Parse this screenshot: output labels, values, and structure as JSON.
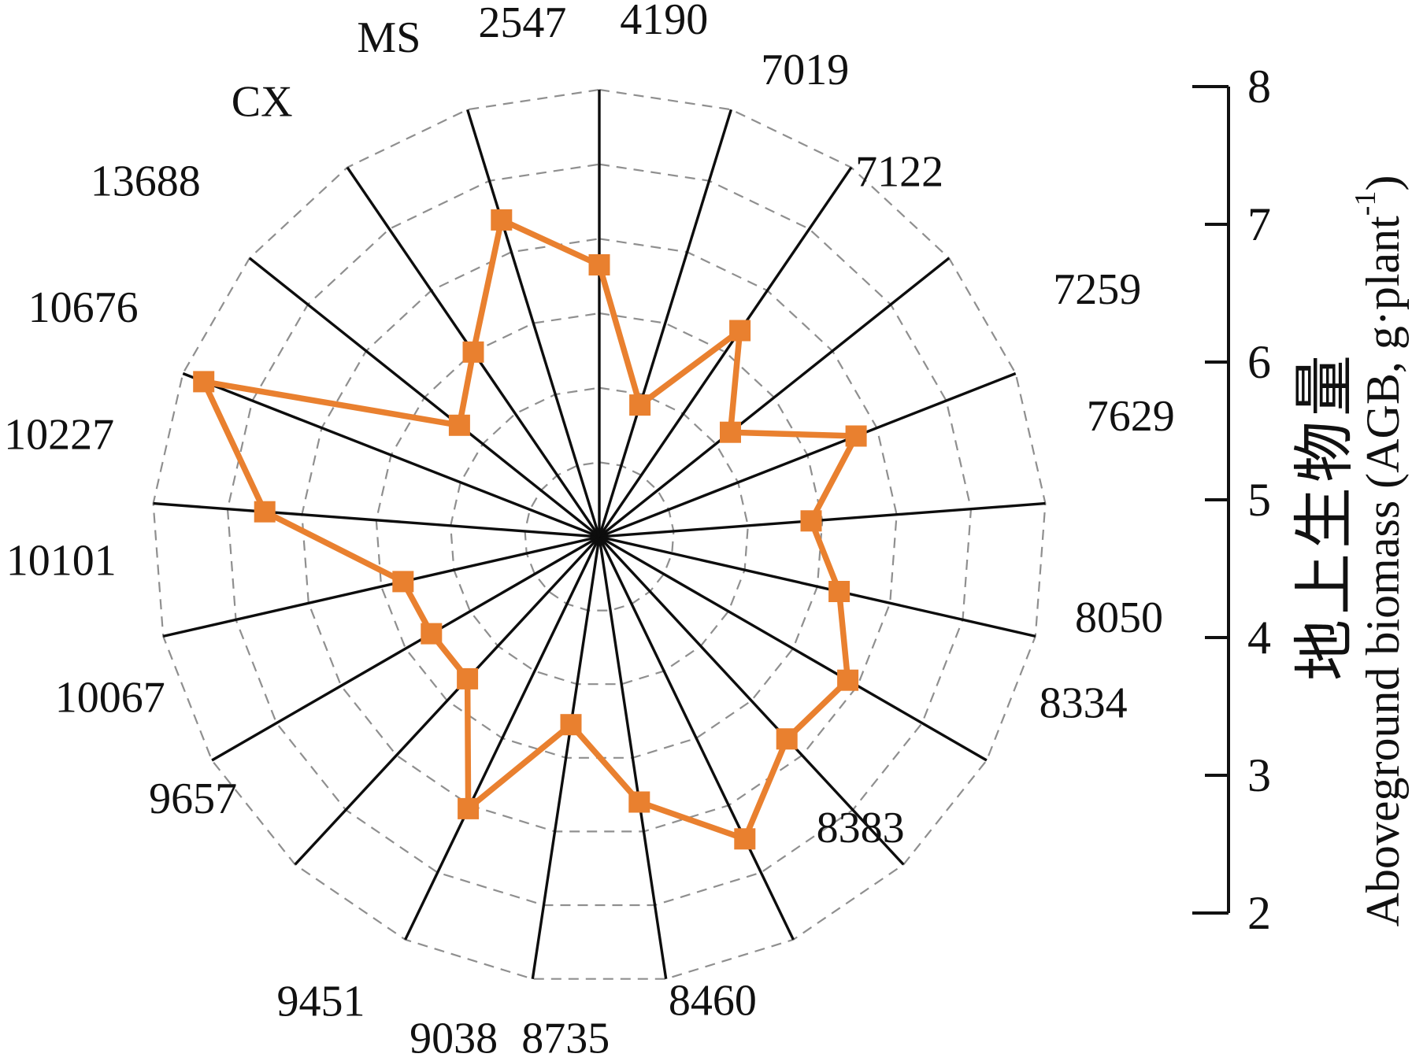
{
  "chart_data": {
    "type": "radar",
    "title": "",
    "categories": [
      "2547",
      "4190",
      "7019",
      "7122",
      "7259",
      "7629",
      "8050",
      "8334",
      "8383",
      "8460",
      "8735",
      "9038",
      "9451",
      "9657",
      "10067",
      "10101",
      "10227",
      "10676",
      "13688",
      "CX",
      "MS"
    ],
    "series": [
      {
        "name": "Aboveground biomass (AGB)",
        "values": [
          5.65,
          3.85,
          5.35,
          4.25,
          5.7,
          4.85,
          5.3,
          5.85,
          5.7,
          6.5,
          5.6,
          4.55,
          6.05,
          4.6,
          4.6,
          4.7,
          6.5,
          7.7,
          4.4,
          5.0,
          6.45
        ]
      }
    ],
    "r_min": 2,
    "r_max": 8,
    "ring_step": 1,
    "grid": "dashed-polygon",
    "legend_position": "none",
    "axis_ticks": [
      "8",
      "7",
      "6",
      "5",
      "4",
      "3",
      "2"
    ],
    "ylabel_cn": "地上生物量",
    "ylabel_en_main": "Aboveground biomass (AGB, g·plant",
    "ylabel_en_sup": "-1",
    "ylabel_en_close": ")",
    "colors": {
      "series": "#E9802F",
      "spokes": "#0d0d0d",
      "grid_rings": "#8f8f8f",
      "axis": "#111111",
      "text": "#111111",
      "background": "#ffffff"
    }
  }
}
